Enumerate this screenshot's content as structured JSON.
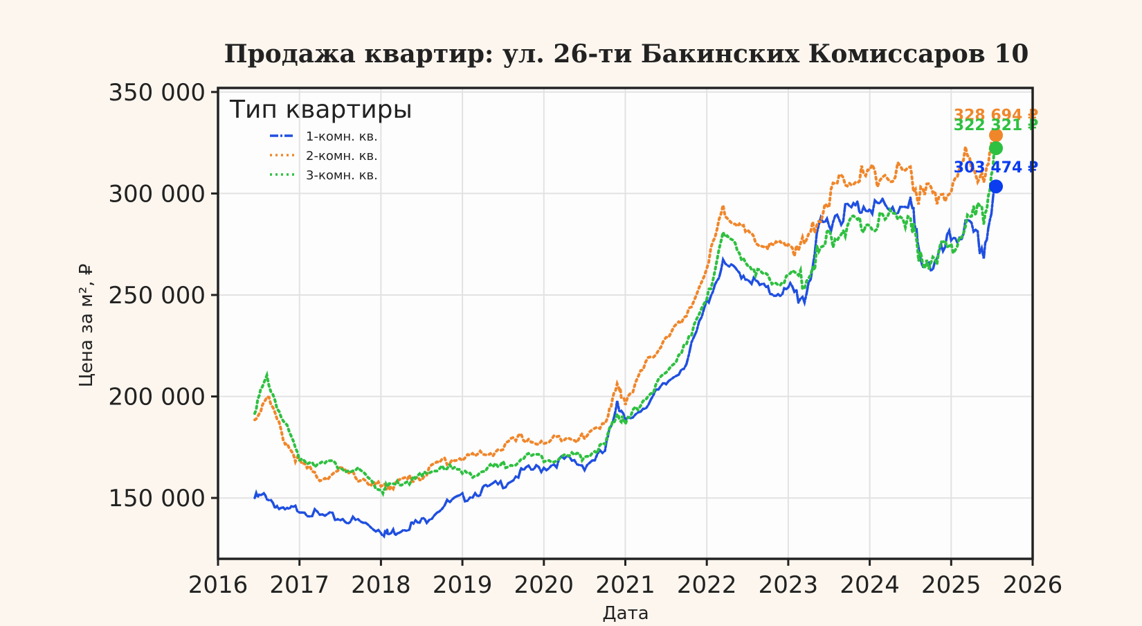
{
  "chart_data": {
    "type": "line",
    "title": "Продажа квартир: ул. 26-ти Бакинских Комиссаров 10",
    "xlabel": "Дата",
    "ylabel": "Цена за м², ₽",
    "xlim": [
      2016,
      2026
    ],
    "ylim": [
      120000,
      352000
    ],
    "x_ticks": [
      "2016",
      "2017",
      "2018",
      "2019",
      "2020",
      "2021",
      "2022",
      "2023",
      "2024",
      "2025",
      "2026"
    ],
    "y_ticks": [
      {
        "value": 150000,
        "label": "150 000"
      },
      {
        "value": 200000,
        "label": "200 000"
      },
      {
        "value": 250000,
        "label": "250 000"
      },
      {
        "value": 300000,
        "label": "300 000"
      },
      {
        "value": 350000,
        "label": "350 000"
      }
    ],
    "grid": true,
    "legend": {
      "title": "Тип квартиры",
      "position": "upper left",
      "items": [
        {
          "label": "1-комн. кв.",
          "color": "#1f4fe0",
          "style": "dashdot"
        },
        {
          "label": "2-комн. кв.",
          "color": "#f0862a",
          "style": "dotted"
        },
        {
          "label": "3-комн. кв.",
          "color": "#2ec040",
          "style": "dotted"
        }
      ]
    },
    "x": [
      2016.45,
      2016.6,
      2016.8,
      2017.0,
      2017.25,
      2017.5,
      2017.75,
      2018.0,
      2018.1,
      2018.3,
      2018.5,
      2018.75,
      2019.0,
      2019.25,
      2019.5,
      2019.75,
      2020.0,
      2020.25,
      2020.5,
      2020.75,
      2020.9,
      2021.0,
      2021.25,
      2021.5,
      2021.75,
      2022.0,
      2022.2,
      2022.4,
      2022.6,
      2022.8,
      2023.0,
      2023.2,
      2023.4,
      2023.6,
      2023.8,
      2024.0,
      2024.25,
      2024.5,
      2024.6,
      2024.8,
      2025.0,
      2025.2,
      2025.4,
      2025.55
    ],
    "series": [
      {
        "name": "1-комн. кв.",
        "color": "#1f4fe0",
        "values": [
          150000,
          151000,
          143000,
          145000,
          141000,
          140000,
          138000,
          134000,
          132000,
          136000,
          138000,
          146000,
          150000,
          154000,
          157000,
          163000,
          165000,
          169000,
          166000,
          173000,
          198000,
          187000,
          196000,
          206000,
          217000,
          246000,
          265000,
          261000,
          256000,
          251000,
          252000,
          249000,
          283000,
          290000,
          292000,
          296000,
          290000,
          298000,
          270000,
          264000,
          278000,
          283000,
          272000,
          303474
        ]
      },
      {
        "name": "2-комн. кв.",
        "color": "#f0862a",
        "values": [
          188000,
          201000,
          180000,
          167000,
          160000,
          163000,
          160000,
          155000,
          156000,
          159000,
          161000,
          168000,
          170000,
          171000,
          175000,
          180000,
          176000,
          181000,
          179000,
          188000,
          205000,
          198000,
          215000,
          230000,
          238000,
          264000,
          292000,
          284000,
          276000,
          274000,
          275000,
          274000,
          292000,
          304000,
          310000,
          308000,
          310000,
          310000,
          298000,
          300000,
          300000,
          320000,
          305000,
          328694
        ]
      },
      {
        "name": "3-комн. кв.",
        "color": "#2ec040",
        "values": [
          194000,
          209000,
          188000,
          170000,
          167000,
          166000,
          162000,
          154000,
          155000,
          158000,
          160000,
          166000,
          162000,
          163000,
          166000,
          170000,
          170000,
          170000,
          171000,
          176000,
          192000,
          186000,
          200000,
          210000,
          228000,
          246000,
          282000,
          270000,
          262000,
          256000,
          258000,
          258000,
          272000,
          282000,
          283000,
          286000,
          287000,
          290000,
          265000,
          270000,
          272000,
          288000,
          290000,
          322321
        ]
      }
    ],
    "annotations": [
      {
        "series": "2-комн. кв.",
        "text": "328 694 ₽",
        "color": "#f0862a",
        "value": 328694
      },
      {
        "series": "3-комн. кв.",
        "text": "322 321 ₽",
        "color": "#2ec040",
        "value": 322321
      },
      {
        "series": "1-комн. кв.",
        "text": "303 474 ₽",
        "color": "#0a3cf0",
        "value": 303474
      }
    ],
    "colors": {
      "page_bg": "#fdf6ee",
      "plot_bg": "#fdfdfd",
      "grid": "#e2e2e2",
      "frame": "#222222"
    }
  }
}
